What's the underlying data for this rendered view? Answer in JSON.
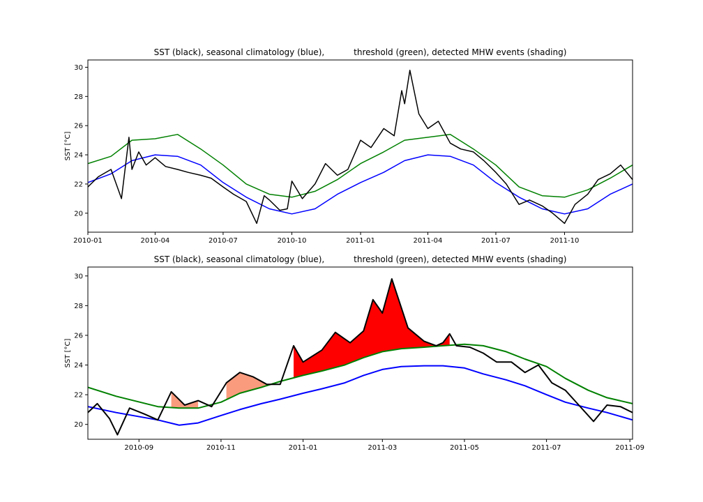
{
  "chart_data": [
    {
      "type": "line",
      "title": "SST (black), seasonal climatology (blue),           threshold (green), detected MHW events (shading)",
      "xlabel": "",
      "ylabel": "SST [°C]",
      "xlim": [
        "2010-01-01",
        "2011-12-31"
      ],
      "ylim": [
        18.7,
        30.5
      ],
      "x_ticks": [
        "2010-01",
        "2010-04",
        "2010-07",
        "2010-10",
        "2011-01",
        "2011-04",
        "2011-07",
        "2011-10"
      ],
      "y_ticks": [
        20,
        22,
        24,
        26,
        28,
        30
      ],
      "grid": false,
      "series": [
        {
          "name": "SST",
          "color": "#000000",
          "x": [
            "2010-01-01",
            "2010-01-15",
            "2010-02-01",
            "2010-02-15",
            "2010-02-25",
            "2010-03-01",
            "2010-03-10",
            "2010-03-20",
            "2010-04-01",
            "2010-04-15",
            "2010-05-01",
            "2010-05-15",
            "2010-06-01",
            "2010-06-15",
            "2010-07-01",
            "2010-07-15",
            "2010-08-01",
            "2010-08-15",
            "2010-08-25",
            "2010-09-01",
            "2010-09-15",
            "2010-09-25",
            "2010-10-01",
            "2010-10-15",
            "2010-11-01",
            "2010-11-15",
            "2010-12-01",
            "2010-12-15",
            "2011-01-01",
            "2011-01-15",
            "2011-02-01",
            "2011-02-15",
            "2011-02-25",
            "2011-03-01",
            "2011-03-08",
            "2011-03-20",
            "2011-04-01",
            "2011-04-15",
            "2011-05-01",
            "2011-05-15",
            "2011-06-01",
            "2011-06-15",
            "2011-07-01",
            "2011-07-15",
            "2011-08-01",
            "2011-08-15",
            "2011-09-01",
            "2011-09-15",
            "2011-10-01",
            "2011-10-15",
            "2011-11-01",
            "2011-11-15",
            "2011-12-01",
            "2011-12-15",
            "2011-12-31"
          ],
          "y": [
            21.8,
            22.5,
            23.0,
            21.0,
            25.2,
            23.0,
            24.2,
            23.3,
            23.8,
            23.2,
            23.0,
            22.8,
            22.6,
            22.4,
            21.8,
            21.3,
            20.8,
            19.3,
            21.2,
            20.9,
            20.2,
            20.3,
            22.2,
            21.0,
            22.0,
            23.4,
            22.6,
            23.0,
            25.0,
            24.5,
            25.8,
            25.3,
            28.4,
            27.5,
            29.8,
            26.8,
            25.8,
            26.3,
            24.8,
            24.4,
            24.2,
            23.6,
            22.8,
            22.0,
            20.6,
            20.9,
            20.5,
            20.0,
            19.3,
            20.6,
            21.3,
            22.3,
            22.7,
            23.3,
            22.3
          ]
        },
        {
          "name": "seasonal climatology",
          "color": "#0000ff",
          "x": [
            "2010-01-01",
            "2010-02-01",
            "2010-03-01",
            "2010-04-01",
            "2010-05-01",
            "2010-06-01",
            "2010-07-01",
            "2010-08-01",
            "2010-09-01",
            "2010-10-01",
            "2010-11-01",
            "2010-12-01",
            "2011-01-01",
            "2011-02-01",
            "2011-03-01",
            "2011-04-01",
            "2011-05-01",
            "2011-06-01",
            "2011-07-01",
            "2011-08-01",
            "2011-09-01",
            "2011-10-01",
            "2011-11-01",
            "2011-12-01",
            "2011-12-31"
          ],
          "y": [
            22.1,
            22.7,
            23.6,
            24.0,
            23.9,
            23.3,
            22.1,
            21.1,
            20.3,
            19.95,
            20.3,
            21.3,
            22.1,
            22.8,
            23.6,
            24.0,
            23.9,
            23.3,
            22.1,
            21.1,
            20.3,
            19.95,
            20.3,
            21.3,
            22.0
          ]
        },
        {
          "name": "threshold",
          "color": "#008000",
          "x": [
            "2010-01-01",
            "2010-02-01",
            "2010-03-01",
            "2010-04-01",
            "2010-05-01",
            "2010-06-01",
            "2010-07-01",
            "2010-08-01",
            "2010-09-01",
            "2010-10-01",
            "2010-11-01",
            "2010-12-01",
            "2011-01-01",
            "2011-02-01",
            "2011-03-01",
            "2011-04-01",
            "2011-05-01",
            "2011-06-01",
            "2011-07-01",
            "2011-08-01",
            "2011-09-01",
            "2011-10-01",
            "2011-11-01",
            "2011-12-01",
            "2011-12-31"
          ],
          "y": [
            23.4,
            23.9,
            25.0,
            25.1,
            25.4,
            24.4,
            23.3,
            22.0,
            21.3,
            21.1,
            21.5,
            22.3,
            23.4,
            24.2,
            25.0,
            25.2,
            25.4,
            24.4,
            23.3,
            21.8,
            21.2,
            21.1,
            21.6,
            22.4,
            23.3
          ]
        }
      ]
    },
    {
      "type": "line",
      "title": "SST (black), seasonal climatology (blue),           threshold (green), detected MHW events (shading)",
      "xlabel": "",
      "ylabel": "SST [°C]",
      "xlim": [
        "2010-07-25",
        "2011-09-03"
      ],
      "ylim": [
        19.0,
        30.6
      ],
      "x_ticks": [
        "2010-09",
        "2010-11",
        "2011-01",
        "2011-03",
        "2011-05",
        "2011-07",
        "2011-09"
      ],
      "y_ticks": [
        20,
        22,
        24,
        26,
        28,
        30
      ],
      "grid": false,
      "series": [
        {
          "name": "SST",
          "color": "#000000",
          "x": [
            "2010-07-25",
            "2010-08-01",
            "2010-08-10",
            "2010-08-16",
            "2010-08-25",
            "2010-09-05",
            "2010-09-15",
            "2010-09-25",
            "2010-10-05",
            "2010-10-15",
            "2010-10-25",
            "2010-11-05",
            "2010-11-15",
            "2010-11-25",
            "2010-12-05",
            "2010-12-15",
            "2010-12-25",
            "2011-01-01",
            "2011-01-15",
            "2011-01-25",
            "2011-02-05",
            "2011-02-15",
            "2011-02-22",
            "2011-03-01",
            "2011-03-08",
            "2011-03-20",
            "2011-04-01",
            "2011-04-10",
            "2011-04-15",
            "2011-04-20",
            "2011-04-25",
            "2011-05-05",
            "2011-05-15",
            "2011-05-25",
            "2011-06-05",
            "2011-06-15",
            "2011-06-25",
            "2011-07-05",
            "2011-07-15",
            "2011-07-25",
            "2011-08-05",
            "2011-08-15",
            "2011-08-25",
            "2011-09-03"
          ],
          "y": [
            20.8,
            21.4,
            20.4,
            19.3,
            21.1,
            20.7,
            20.3,
            22.2,
            21.3,
            21.6,
            21.2,
            22.8,
            23.5,
            23.2,
            22.7,
            22.7,
            25.3,
            24.2,
            25.0,
            26.2,
            25.5,
            26.3,
            28.4,
            27.5,
            29.8,
            26.5,
            25.6,
            25.3,
            25.5,
            26.1,
            25.3,
            25.2,
            24.8,
            24.2,
            24.2,
            23.5,
            24.0,
            22.8,
            22.3,
            21.3,
            20.2,
            21.3,
            21.2,
            20.8
          ]
        },
        {
          "name": "seasonal climatology",
          "color": "#0000ff",
          "x": [
            "2010-07-25",
            "2010-08-15",
            "2010-09-15",
            "2010-10-01",
            "2010-10-15",
            "2010-11-01",
            "2010-11-15",
            "2010-12-01",
            "2010-12-15",
            "2011-01-01",
            "2011-01-15",
            "2011-02-01",
            "2011-02-15",
            "2011-03-01",
            "2011-03-15",
            "2011-04-01",
            "2011-04-15",
            "2011-05-01",
            "2011-05-15",
            "2011-06-01",
            "2011-06-15",
            "2011-07-01",
            "2011-07-15",
            "2011-08-01",
            "2011-08-15",
            "2011-09-03"
          ],
          "y": [
            21.2,
            20.8,
            20.3,
            19.95,
            20.1,
            20.6,
            21.0,
            21.4,
            21.7,
            22.1,
            22.4,
            22.8,
            23.3,
            23.7,
            23.9,
            23.95,
            23.95,
            23.8,
            23.4,
            23.0,
            22.6,
            22.0,
            21.5,
            21.1,
            20.8,
            20.3
          ]
        },
        {
          "name": "threshold",
          "color": "#008000",
          "x": [
            "2010-07-25",
            "2010-08-15",
            "2010-09-15",
            "2010-10-01",
            "2010-10-15",
            "2010-11-01",
            "2010-11-15",
            "2010-12-01",
            "2010-12-15",
            "2011-01-01",
            "2011-01-15",
            "2011-02-01",
            "2011-02-15",
            "2011-03-01",
            "2011-03-15",
            "2011-04-01",
            "2011-04-15",
            "2011-05-01",
            "2011-05-15",
            "2011-06-01",
            "2011-06-15",
            "2011-07-01",
            "2011-07-15",
            "2011-08-01",
            "2011-08-15",
            "2011-09-03"
          ],
          "y": [
            22.5,
            21.9,
            21.2,
            21.1,
            21.1,
            21.5,
            22.1,
            22.5,
            22.9,
            23.3,
            23.6,
            24.0,
            24.5,
            24.9,
            25.1,
            25.2,
            25.3,
            25.4,
            25.3,
            24.9,
            24.4,
            23.9,
            23.1,
            22.3,
            21.8,
            21.4
          ]
        }
      ]
    }
  ]
}
